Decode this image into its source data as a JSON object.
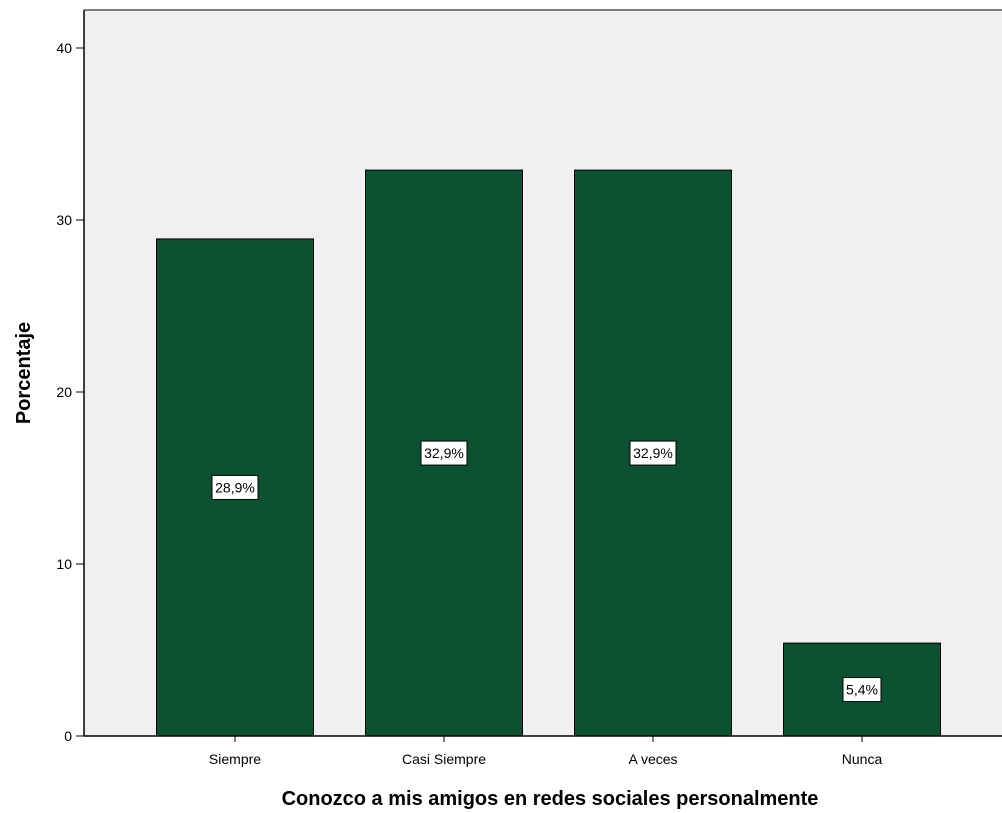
{
  "chart_data": {
    "type": "bar",
    "categories": [
      "Siempre",
      "Casi Siempre",
      "A veces",
      "Nunca"
    ],
    "values": [
      28.9,
      32.9,
      32.9,
      5.4
    ],
    "data_labels": [
      "28,9%",
      "32,9%",
      "32,9%",
      "5,4%"
    ],
    "title": "",
    "xlabel": "Conozco a mis amigos en redes sociales personalmente",
    "ylabel": "Porcentaje",
    "ylim": [
      0,
      40
    ],
    "yticks": [
      0,
      10,
      20,
      30,
      40
    ],
    "ytick_labels": [
      "0",
      "10",
      "20",
      "30",
      "40"
    ],
    "grid": false,
    "legend": "none",
    "colors": {
      "bar_fill": "#0b5132",
      "bar_stroke": "#000000",
      "plot_background": "#f0f0f0",
      "label_box": "#ffffff"
    }
  }
}
